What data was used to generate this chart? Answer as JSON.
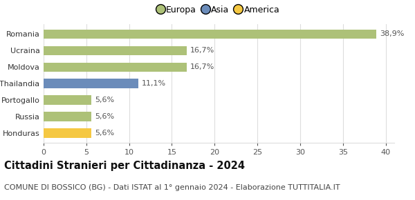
{
  "categories": [
    "Honduras",
    "Russia",
    "Portogallo",
    "Thailandia",
    "Moldova",
    "Ucraina",
    "Romania"
  ],
  "values": [
    5.6,
    5.6,
    5.6,
    11.1,
    16.7,
    16.7,
    38.9
  ],
  "labels": [
    "5,6%",
    "5,6%",
    "5,6%",
    "11,1%",
    "16,7%",
    "16,7%",
    "38,9%"
  ],
  "colors": [
    "#f5c842",
    "#adc178",
    "#adc178",
    "#6b8cba",
    "#adc178",
    "#adc178",
    "#adc178"
  ],
  "legend_labels": [
    "Europa",
    "Asia",
    "America"
  ],
  "legend_colors": [
    "#adc178",
    "#6b8cba",
    "#f5c842"
  ],
  "title": "Cittadini Stranieri per Cittadinanza - 2024",
  "subtitle": "COMUNE DI BOSSICO (BG) - Dati ISTAT al 1° gennaio 2024 - Elaborazione TUTTITALIA.IT",
  "xlim": [
    0,
    41
  ],
  "xticks": [
    0,
    5,
    10,
    15,
    20,
    25,
    30,
    35,
    40
  ],
  "background_color": "#ffffff",
  "grid_color": "#dddddd",
  "bar_height": 0.55,
  "title_fontsize": 10.5,
  "subtitle_fontsize": 8,
  "tick_fontsize": 8,
  "label_fontsize": 8
}
